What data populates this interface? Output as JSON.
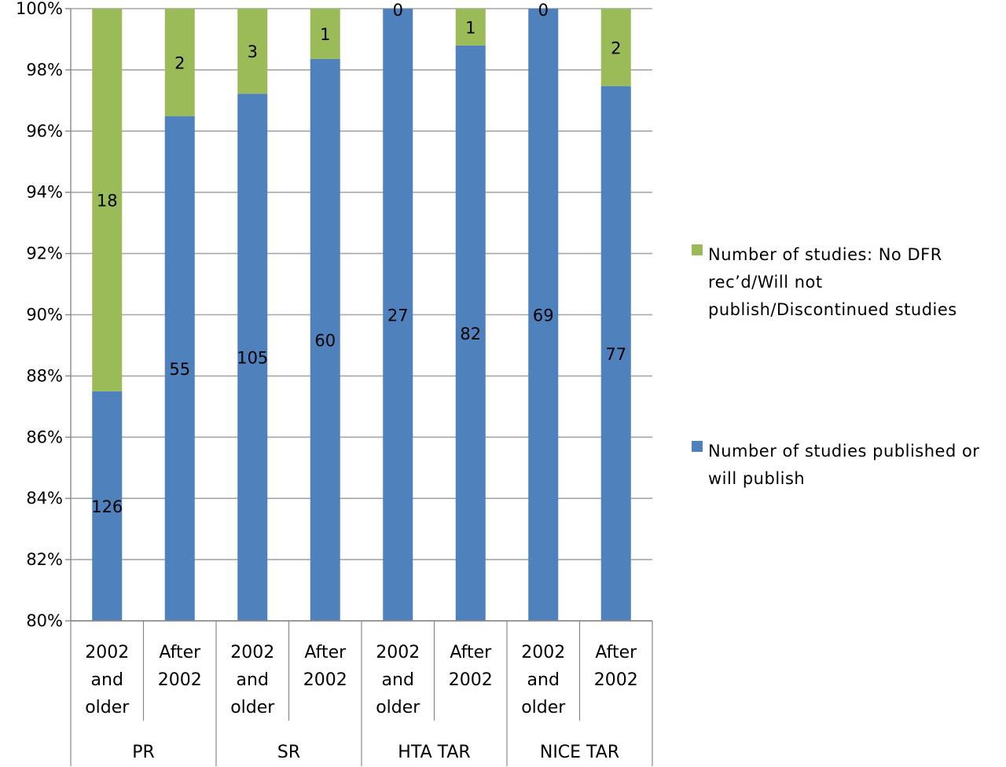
{
  "chart_data": {
    "type": "bar",
    "stacked": "percent",
    "ylim": [
      0.8,
      1.0
    ],
    "y_ticks": [
      "80%",
      "82%",
      "84%",
      "86%",
      "88%",
      "90%",
      "92%",
      "94%",
      "96%",
      "98%",
      "100%"
    ],
    "grid": true,
    "legend_position": "right",
    "groups": [
      {
        "label": "PR",
        "subcategories": [
          "2002\nand\nolder",
          "After\n2002"
        ]
      },
      {
        "label": "SR",
        "subcategories": [
          "2002\nand\nolder",
          "After\n2002"
        ]
      },
      {
        "label": "HTA TAR",
        "subcategories": [
          "2002\nand\nolder",
          "After\n2002"
        ]
      },
      {
        "label": "NICE TAR",
        "subcategories": [
          "2002\nand\nolder",
          "After\n2002"
        ]
      }
    ],
    "series": [
      {
        "name": "Number of studies published or will publish",
        "color": "#4f81bd",
        "values": [
          126,
          55,
          105,
          60,
          27,
          82,
          69,
          77
        ]
      },
      {
        "name": "Number of studies: No DFR rec’d/Will not publish/Discontinued studies",
        "color": "#9bbb59",
        "values": [
          18,
          2,
          3,
          1,
          0,
          1,
          0,
          2
        ]
      }
    ],
    "legend": [
      {
        "series_index": 1,
        "lines": [
          "Number of studies: No DFR",
          "rec’d/Will not",
          "publish/Discontinued studies"
        ]
      },
      {
        "series_index": 0,
        "lines": [
          "Number of studies published or",
          "will publish"
        ]
      }
    ]
  }
}
